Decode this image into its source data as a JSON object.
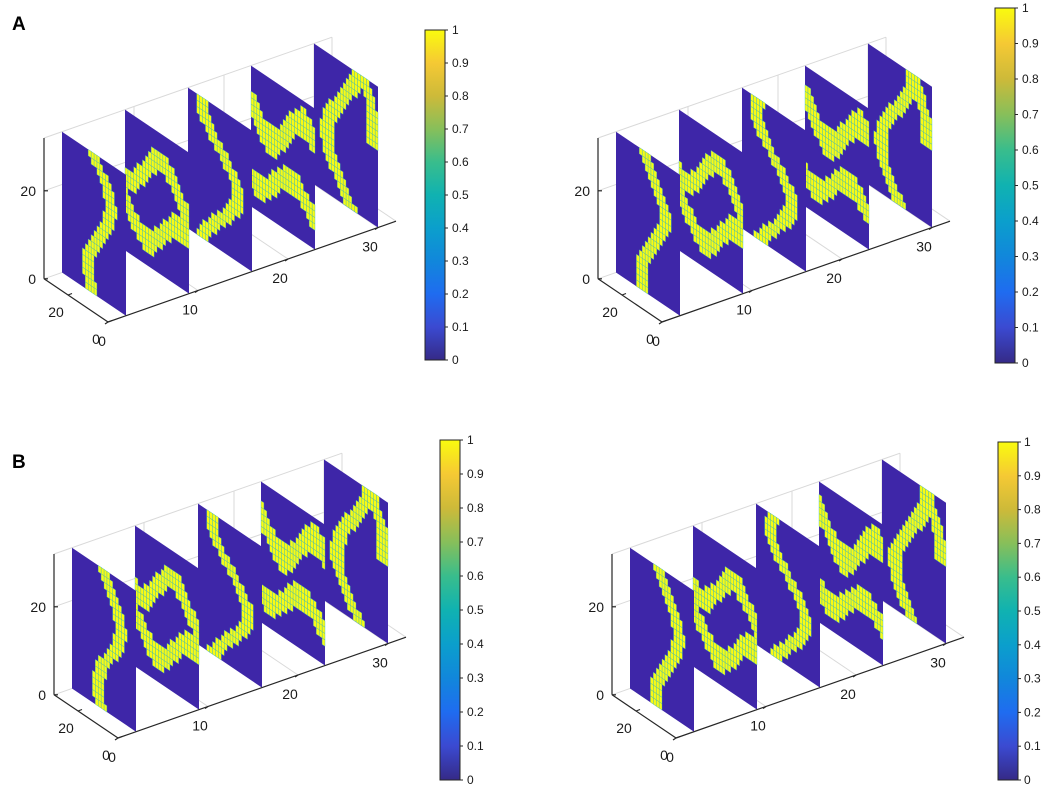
{
  "panel_labels": [
    "A",
    "B"
  ],
  "colors": {
    "low": "#3e26a8",
    "edge": "#29b6c8",
    "high": "#f9fb15",
    "axis": "#262626",
    "grid": "#d9d9d9"
  },
  "colormap": "parula",
  "chart_data": [
    {
      "type": "heatmap",
      "title": "",
      "panel": "A",
      "view": "3-D slice plot",
      "slices_at_x": [
        2,
        9,
        16,
        23,
        30
      ],
      "xlim": [
        0,
        32
      ],
      "ylim": [
        0,
        32
      ],
      "zlim": [
        0,
        32
      ],
      "x_ticks": [
        "0",
        "10",
        "20",
        "30"
      ],
      "y_ticks": [
        "0",
        "20"
      ],
      "z_ticks": [
        "0",
        "20"
      ],
      "colorbar_range": [
        0,
        1
      ],
      "colorbar_ticks": [
        "0",
        "0.1",
        "0.2",
        "0.3",
        "0.4",
        "0.5",
        "0.6",
        "0.7",
        "0.8",
        "0.9",
        "1"
      ],
      "values": [
        0,
        1
      ],
      "grid": true
    },
    {
      "type": "heatmap",
      "title": "",
      "panel": "A",
      "view": "3-D slice plot",
      "slices_at_x": [
        2,
        9,
        16,
        23,
        30
      ],
      "xlim": [
        0,
        32
      ],
      "ylim": [
        0,
        32
      ],
      "zlim": [
        0,
        32
      ],
      "x_ticks": [
        "0",
        "10",
        "20",
        "30"
      ],
      "y_ticks": [
        "0",
        "20"
      ],
      "z_ticks": [
        "0",
        "20"
      ],
      "colorbar_range": [
        0,
        1
      ],
      "colorbar_ticks": [
        "0",
        "0.1",
        "0.2",
        "0.3",
        "0.4",
        "0.5",
        "0.6",
        "0.7",
        "0.8",
        "0.9",
        "1"
      ],
      "values": [
        0,
        1
      ],
      "grid": true
    },
    {
      "type": "heatmap",
      "title": "",
      "panel": "B",
      "view": "3-D slice plot",
      "slices_at_x": [
        2,
        9,
        16,
        23,
        30
      ],
      "xlim": [
        0,
        32
      ],
      "ylim": [
        0,
        32
      ],
      "zlim": [
        0,
        32
      ],
      "x_ticks": [
        "0",
        "10",
        "20",
        "30"
      ],
      "y_ticks": [
        "0",
        "20"
      ],
      "z_ticks": [
        "0",
        "20"
      ],
      "colorbar_range": [
        0,
        1
      ],
      "colorbar_ticks": [
        "0",
        "0.1",
        "0.2",
        "0.3",
        "0.4",
        "0.5",
        "0.6",
        "0.7",
        "0.8",
        "0.9",
        "1"
      ],
      "values": [
        0,
        1
      ],
      "grid": true
    },
    {
      "type": "heatmap",
      "title": "",
      "panel": "B",
      "view": "3-D slice plot",
      "slices_at_x": [
        2,
        9,
        16,
        23,
        30
      ],
      "xlim": [
        0,
        32
      ],
      "ylim": [
        0,
        32
      ],
      "zlim": [
        0,
        32
      ],
      "x_ticks": [
        "0",
        "10",
        "20",
        "30"
      ],
      "y_ticks": [
        "0",
        "20"
      ],
      "z_ticks": [
        "0",
        "20"
      ],
      "colorbar_range": [
        0,
        1
      ],
      "colorbar_ticks": [
        "0",
        "0.1",
        "0.2",
        "0.3",
        "0.4",
        "0.5",
        "0.6",
        "0.7",
        "0.8",
        "0.9",
        "1"
      ],
      "values": [
        0,
        1
      ],
      "grid": true
    }
  ]
}
